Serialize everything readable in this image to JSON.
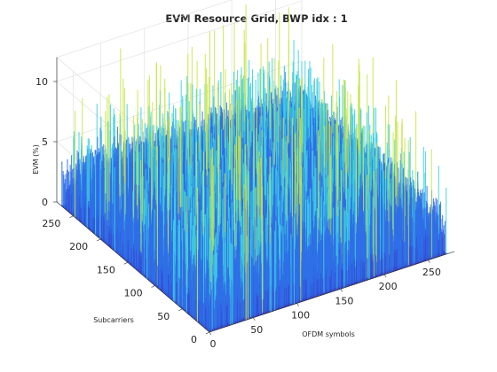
{
  "chart_data": {
    "type": "surface3d",
    "title": "EVM Resource Grid, BWP idx : 1",
    "xlabel": "OFDM symbols",
    "ylabel": "Subcarriers",
    "zlabel": "EVM (%)",
    "xlim": [
      0,
      280
    ],
    "ylim": [
      0,
      280
    ],
    "zlim": [
      0,
      12
    ],
    "x_ticks": [
      0,
      50,
      100,
      150,
      200,
      250
    ],
    "y_ticks": [
      0,
      50,
      100,
      150,
      200,
      250
    ],
    "z_ticks": [
      0,
      5,
      10
    ],
    "grid": true,
    "colormap": "parula-like (blue to cyan)",
    "summary_values": {
      "typical_evm_percent": 3.5,
      "peak_evm_percent": 12
    }
  },
  "colors": {
    "low": "#3b2fa8",
    "mid": "#2f6fe6",
    "high": "#3fd0e0",
    "peak": "#c8e64a"
  }
}
